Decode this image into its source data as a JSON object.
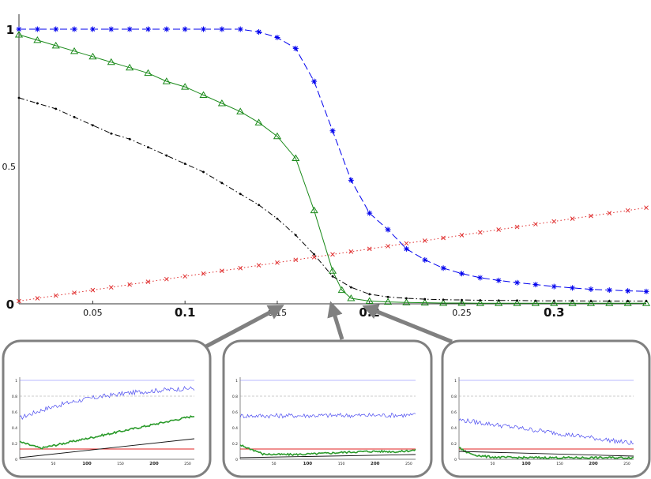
{
  "chart_data": {
    "type": "line",
    "main": {
      "xlim": [
        0.01,
        0.35
      ],
      "ylim": [
        0,
        1
      ],
      "x_ticks": [
        {
          "value": 0.05,
          "label": "0.05",
          "major": false
        },
        {
          "value": 0.1,
          "label": "0.1",
          "major": true
        },
        {
          "value": 0.15,
          "label": "0.15",
          "major": false
        },
        {
          "value": 0.2,
          "label": "0.2",
          "major": true
        },
        {
          "value": 0.25,
          "label": "0.25",
          "major": false
        },
        {
          "value": 0.3,
          "label": "0.3",
          "major": true
        }
      ],
      "y_ticks": [
        {
          "value": 0,
          "label": "0",
          "major": true
        },
        {
          "value": 0.5,
          "label": "0.5",
          "major": false
        },
        {
          "value": 1,
          "label": "1",
          "major": true
        }
      ],
      "series": [
        {
          "color": "#0000ee",
          "line_style": "dashed",
          "marker": "asterisk",
          "x": [
            0.01,
            0.02,
            0.03,
            0.04,
            0.05,
            0.06,
            0.07,
            0.08,
            0.09,
            0.1,
            0.11,
            0.12,
            0.13,
            0.14,
            0.15,
            0.16,
            0.17,
            0.18,
            0.19,
            0.2,
            0.21,
            0.22,
            0.23,
            0.24,
            0.25,
            0.26,
            0.27,
            0.28,
            0.29,
            0.3,
            0.31,
            0.32,
            0.33,
            0.34,
            0.35
          ],
          "y": [
            1.0,
            1.0,
            1.0,
            1.0,
            1.0,
            1.0,
            1.0,
            1.0,
            1.0,
            1.0,
            1.0,
            1.0,
            1.0,
            0.99,
            0.97,
            0.93,
            0.81,
            0.63,
            0.45,
            0.33,
            0.27,
            0.2,
            0.16,
            0.13,
            0.11,
            0.095,
            0.085,
            0.077,
            0.07,
            0.063,
            0.058,
            0.053,
            0.05,
            0.047,
            0.045
          ]
        },
        {
          "color": "#1a8a1a",
          "line_style": "solid",
          "marker": "triangle",
          "x": [
            0.01,
            0.02,
            0.03,
            0.04,
            0.05,
            0.06,
            0.07,
            0.08,
            0.09,
            0.1,
            0.11,
            0.12,
            0.13,
            0.14,
            0.15,
            0.16,
            0.17,
            0.18,
            0.185,
            0.19,
            0.2,
            0.21,
            0.22,
            0.23,
            0.24,
            0.25,
            0.26,
            0.27,
            0.28,
            0.29,
            0.3,
            0.31,
            0.32,
            0.33,
            0.34,
            0.35
          ],
          "y": [
            0.98,
            0.96,
            0.94,
            0.92,
            0.9,
            0.88,
            0.86,
            0.84,
            0.81,
            0.79,
            0.76,
            0.73,
            0.7,
            0.66,
            0.61,
            0.53,
            0.34,
            0.12,
            0.05,
            0.02,
            0.01,
            0.007,
            0.005,
            0.004,
            0.003,
            0.003,
            0.002,
            0.002,
            0.002,
            0.002,
            0.002,
            0.002,
            0.002,
            0.002,
            0.002,
            0.002
          ]
        },
        {
          "color": "#000000",
          "line_style": "dashdot",
          "marker": "dot",
          "x": [
            0.01,
            0.02,
            0.03,
            0.04,
            0.05,
            0.06,
            0.07,
            0.08,
            0.09,
            0.1,
            0.11,
            0.12,
            0.13,
            0.14,
            0.15,
            0.16,
            0.17,
            0.18,
            0.19,
            0.2,
            0.21,
            0.22,
            0.23,
            0.24,
            0.25,
            0.26,
            0.27,
            0.28,
            0.29,
            0.3,
            0.31,
            0.32,
            0.33,
            0.34,
            0.35
          ],
          "y": [
            0.75,
            0.73,
            0.71,
            0.68,
            0.65,
            0.62,
            0.6,
            0.57,
            0.54,
            0.51,
            0.48,
            0.44,
            0.4,
            0.36,
            0.31,
            0.25,
            0.18,
            0.1,
            0.06,
            0.035,
            0.025,
            0.02,
            0.017,
            0.015,
            0.014,
            0.013,
            0.012,
            0.012,
            0.011,
            0.011,
            0.011,
            0.01,
            0.01,
            0.01,
            0.01
          ]
        },
        {
          "color": "#e03030",
          "line_style": "dotted",
          "marker": "x",
          "x": [
            0.01,
            0.02,
            0.03,
            0.04,
            0.05,
            0.06,
            0.07,
            0.08,
            0.09,
            0.1,
            0.11,
            0.12,
            0.13,
            0.14,
            0.15,
            0.16,
            0.17,
            0.18,
            0.19,
            0.2,
            0.21,
            0.22,
            0.23,
            0.24,
            0.25,
            0.26,
            0.27,
            0.28,
            0.29,
            0.3,
            0.31,
            0.32,
            0.33,
            0.34,
            0.35
          ],
          "y": [
            0.01,
            0.02,
            0.03,
            0.04,
            0.05,
            0.06,
            0.07,
            0.08,
            0.09,
            0.1,
            0.11,
            0.12,
            0.13,
            0.14,
            0.15,
            0.16,
            0.17,
            0.18,
            0.19,
            0.2,
            0.21,
            0.22,
            0.23,
            0.24,
            0.25,
            0.26,
            0.27,
            0.28,
            0.29,
            0.3,
            0.31,
            0.32,
            0.33,
            0.34,
            0.35
          ]
        }
      ]
    },
    "insets": [
      {
        "arrow_target_x": 0.15,
        "xlim": [
          0,
          260
        ],
        "ylim": [
          0,
          1
        ],
        "x_tick_labels": [
          "50",
          "100",
          "150",
          "200",
          "250"
        ],
        "y_tick_labels": [
          "0",
          "0.2",
          "0.4",
          "0.6",
          "0.8",
          "1"
        ],
        "blue_trace": {
          "start": 0.52,
          "end": 0.9,
          "shape": "rising"
        },
        "green_trace": {
          "start": 0.22,
          "end": 0.55,
          "shape": "dip_then_rise"
        },
        "black_trace": {
          "start": 0.02,
          "end": 0.26
        },
        "red_level": 0.13
      },
      {
        "arrow_target_x": 0.18,
        "xlim": [
          0,
          260
        ],
        "ylim": [
          0,
          1
        ],
        "x_tick_labels": [
          "50",
          "100",
          "150",
          "200",
          "250"
        ],
        "y_tick_labels": [
          "0",
          "0.2",
          "0.4",
          "0.6",
          "0.8",
          "1"
        ],
        "blue_trace": {
          "start": 0.55,
          "end": 0.56,
          "shape": "flat"
        },
        "green_trace": {
          "start": 0.18,
          "end": 0.08,
          "shape": "drop_then_flat"
        },
        "black_trace": {
          "start": 0.02,
          "end": 0.06
        },
        "red_level": 0.13
      },
      {
        "arrow_target_x": 0.2,
        "xlim": [
          0,
          260
        ],
        "ylim": [
          0,
          1
        ],
        "x_tick_labels": [
          "50",
          "100",
          "150",
          "200",
          "250"
        ],
        "y_tick_labels": [
          "0",
          "0.2",
          "0.4",
          "0.6",
          "0.8",
          "1"
        ],
        "blue_trace": {
          "start": 0.5,
          "end": 0.2,
          "shape": "falling"
        },
        "green_trace": {
          "start": 0.15,
          "end": 0.02,
          "shape": "fast_decay"
        },
        "black_trace": {
          "start": 0.1,
          "end": 0.04
        },
        "red_level": 0.13
      }
    ]
  }
}
